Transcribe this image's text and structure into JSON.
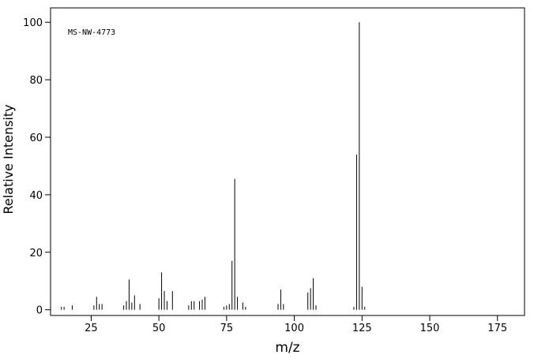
{
  "chart_data": {
    "type": "stick",
    "label": "MS-NW-4773",
    "xlabel": "m/z",
    "ylabel": "Relative Intensity",
    "x": [
      14,
      15,
      18,
      26,
      27,
      28,
      29,
      37,
      38,
      39,
      40,
      41,
      43,
      50,
      51,
      52,
      53,
      55,
      61,
      62,
      63,
      65,
      66,
      67,
      74,
      75,
      76,
      77,
      78,
      79,
      81,
      82,
      94,
      95,
      96,
      105,
      106,
      107,
      108,
      122,
      123,
      124,
      125,
      126
    ],
    "values": [
      1,
      1,
      1.5,
      1.5,
      4.5,
      2,
      2,
      1.5,
      3,
      10.5,
      2.5,
      5,
      2,
      4,
      13,
      6.5,
      3,
      6.5,
      1.5,
      3,
      3,
      3,
      3.5,
      4.5,
      1,
      1.5,
      2,
      17,
      45.5,
      4.5,
      2.5,
      1,
      2,
      7,
      2,
      6,
      7.5,
      11,
      1.5,
      1,
      54,
      100,
      8,
      1
    ],
    "color": "#000000",
    "xlim": [
      10,
      185
    ],
    "xticks": [
      25,
      50,
      75,
      100,
      125,
      150,
      175
    ],
    "ylim": [
      -2,
      105
    ],
    "yticks": [
      0,
      20,
      40,
      60,
      80,
      100
    ]
  }
}
